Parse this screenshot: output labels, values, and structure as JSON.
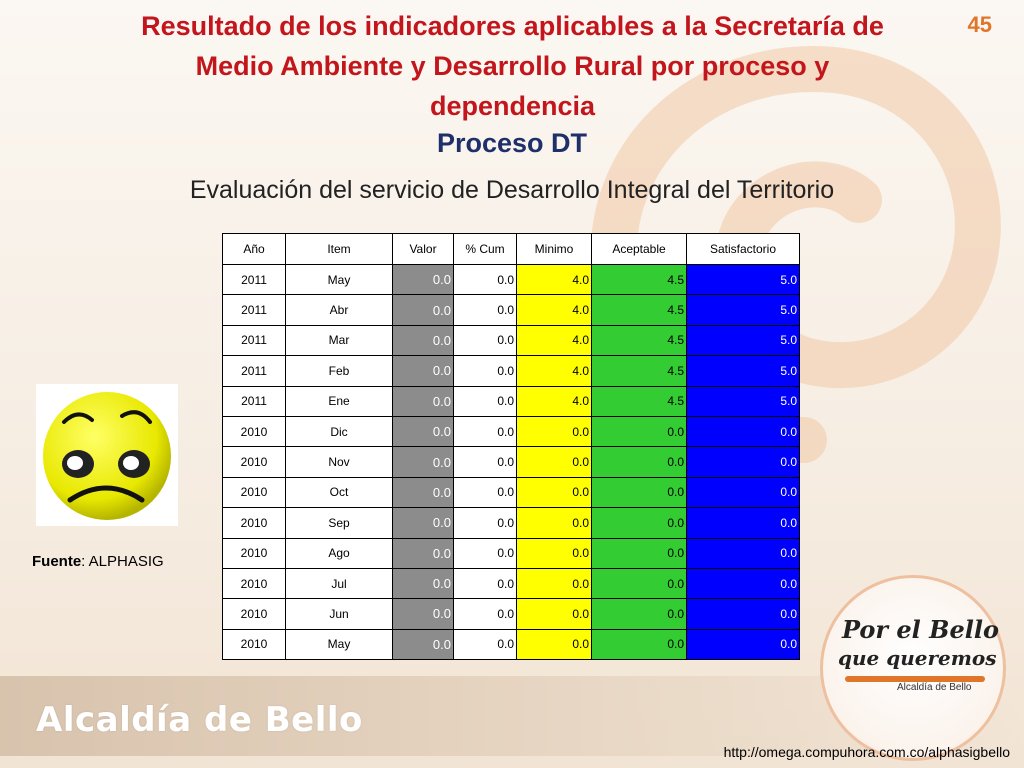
{
  "header": {
    "title_lines": [
      "Resultado de los indicadores aplicables a la Secretaría de",
      "Medio Ambiente y Desarrollo Rural  por proceso y",
      "dependencia"
    ],
    "subtitle": "Proceso DT",
    "page_number": "45",
    "evaluation": "Evaluación del servicio de Desarrollo Integral del Territorio"
  },
  "table": {
    "columns": [
      "Año",
      "Item",
      "Valor",
      "% Cum",
      "Minimo",
      "Aceptable",
      "Satisfactorio"
    ],
    "rows": [
      [
        "2011",
        "May",
        "0.0",
        "0.0",
        "4.0",
        "4.5",
        "5.0"
      ],
      [
        "2011",
        "Abr",
        "0.0",
        "0.0",
        "4.0",
        "4.5",
        "5.0"
      ],
      [
        "2011",
        "Mar",
        "0.0",
        "0.0",
        "4.0",
        "4.5",
        "5.0"
      ],
      [
        "2011",
        "Feb",
        "0.0",
        "0.0",
        "4.0",
        "4.5",
        "5.0"
      ],
      [
        "2011",
        "Ene",
        "0.0",
        "0.0",
        "4.0",
        "4.5",
        "5.0"
      ],
      [
        "2010",
        "Dic",
        "0.0",
        "0.0",
        "0.0",
        "0.0",
        "0.0"
      ],
      [
        "2010",
        "Nov",
        "0.0",
        "0.0",
        "0.0",
        "0.0",
        "0.0"
      ],
      [
        "2010",
        "Oct",
        "0.0",
        "0.0",
        "0.0",
        "0.0",
        "0.0"
      ],
      [
        "2010",
        "Sep",
        "0.0",
        "0.0",
        "0.0",
        "0.0",
        "0.0"
      ],
      [
        "2010",
        "Ago",
        "0.0",
        "0.0",
        "0.0",
        "0.0",
        "0.0"
      ],
      [
        "2010",
        "Jul",
        "0.0",
        "0.0",
        "0.0",
        "0.0",
        "0.0"
      ],
      [
        "2010",
        "Jun",
        "0.0",
        "0.0",
        "0.0",
        "0.0",
        "0.0"
      ],
      [
        "2010",
        "May",
        "0.0",
        "0.0",
        "0.0",
        "0.0",
        "0.0"
      ]
    ]
  },
  "source": {
    "label": "Fuente",
    "value": ": ALPHASIG"
  },
  "logo": {
    "line1": "Por el Bello",
    "line2": "que queremos",
    "sub": "Alcaldía de Bello"
  },
  "footer": {
    "brand": "Alcaldía de Bello",
    "url": "http://omega.compuhora.com.co/alphasigbello"
  },
  "icons": {
    "face": "sad-face-icon"
  },
  "colors": {
    "title": "#c2161c",
    "subtitle": "#1f2f6a",
    "valor": "#8c8c8c",
    "minimo": "#ffff00",
    "aceptable": "#33cc33",
    "satisfactorio": "#0000ff",
    "accent": "#e0762a"
  }
}
